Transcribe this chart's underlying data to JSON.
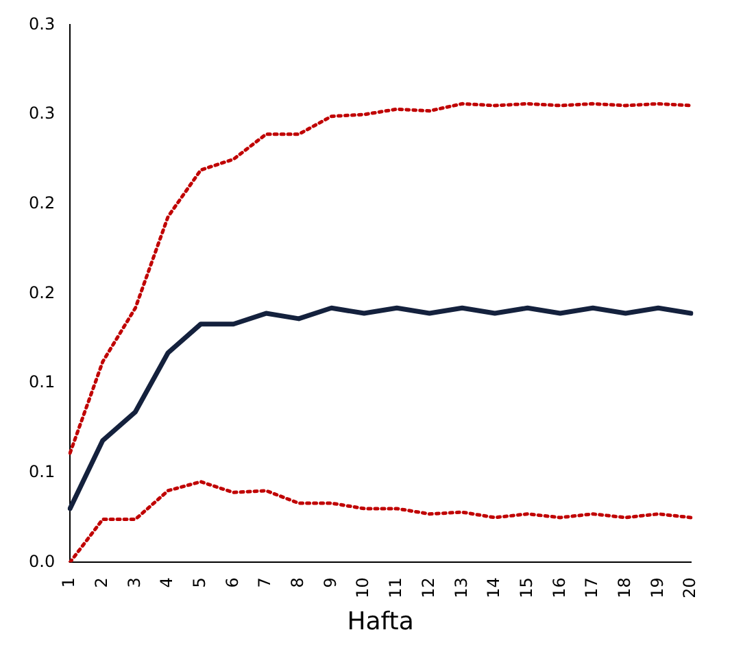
{
  "chart_data": {
    "type": "line",
    "xlabel": "Hafta",
    "categories": [
      "1",
      "2",
      "3",
      "4",
      "5",
      "6",
      "7",
      "8",
      "9",
      "10",
      "11",
      "12",
      "13",
      "14",
      "15",
      "16",
      "17",
      "18",
      "19",
      "20"
    ],
    "series": [
      {
        "color": "#c00000",
        "line_style": "dotted",
        "values": [
          0.061,
          0.112,
          0.142,
          0.193,
          0.219,
          0.225,
          0.239,
          0.239,
          0.249,
          0.25,
          0.253,
          0.252,
          0.256,
          0.255,
          0.256,
          0.255,
          0.256,
          0.255,
          0.256,
          0.255
        ]
      },
      {
        "color": "#14213d",
        "line_style": "solid",
        "values": [
          0.03,
          0.068,
          0.084,
          0.117,
          0.133,
          0.133,
          0.139,
          0.136,
          0.142,
          0.139,
          0.142,
          0.139,
          0.142,
          0.139,
          0.142,
          0.139,
          0.142,
          0.139,
          0.142,
          0.139
        ]
      },
      {
        "color": "#c00000",
        "line_style": "dotted",
        "values": [
          0,
          0.024,
          0.024,
          0.04,
          0.045,
          0.039,
          0.04,
          0.033,
          0.033,
          0.03,
          0.03,
          0.027,
          0.028,
          0.025,
          0.027,
          0.025,
          0.027,
          0.025,
          0.027,
          0.025
        ]
      }
    ],
    "ylim": [
      0,
      0.3
    ],
    "yticks": [
      {
        "value": 0,
        "label": "0.0"
      },
      {
        "value": 0.05,
        "label": "0.1"
      },
      {
        "value": 0.1,
        "label": "0.1"
      },
      {
        "value": 0.15,
        "label": "0.2"
      },
      {
        "value": 0.2,
        "label": "0.2"
      },
      {
        "value": 0.25,
        "label": "0.3"
      },
      {
        "value": 0.3,
        "label": "0.3"
      }
    ],
    "grid": false,
    "legend": false,
    "marker": "none"
  }
}
